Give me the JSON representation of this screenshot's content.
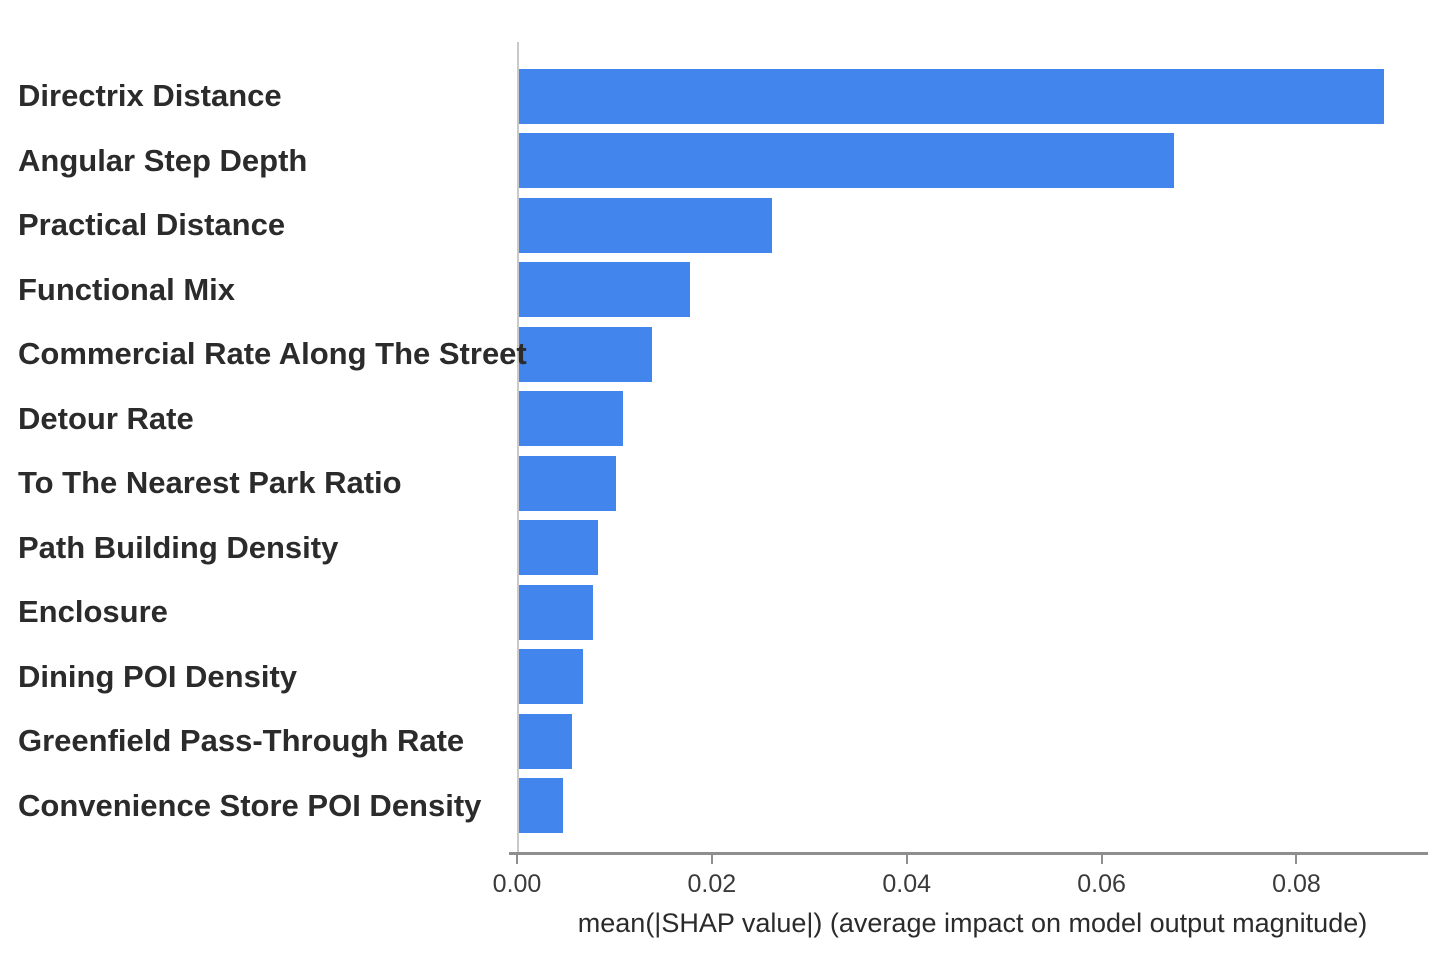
{
  "chart_data": {
    "type": "bar",
    "orientation": "horizontal",
    "title": "",
    "xlabel": "mean(|SHAP value|) (average impact on model output magnitude)",
    "ylabel": "",
    "categories": [
      "Directrix Distance",
      "Angular Step Depth",
      "Practical Distance",
      "Functional Mix",
      "Commercial Rate Along The Street",
      "Detour Rate",
      "To The Nearest Park Ratio",
      "Path Building Density",
      "Enclosure",
      "Dining POI Density",
      "Greenfield Pass-Through Rate",
      "Convenience Store POI Density"
    ],
    "values": [
      0.0888,
      0.0672,
      0.026,
      0.0175,
      0.0137,
      0.0107,
      0.01,
      0.0081,
      0.0076,
      0.0066,
      0.0054,
      0.0045
    ],
    "xtick_values": [
      0.0,
      0.02,
      0.04,
      0.06,
      0.08
    ],
    "xtick_labels": [
      "0.00",
      "0.02",
      "0.04",
      "0.06",
      "0.08"
    ],
    "xlim": [
      0,
      0.0935
    ],
    "grid": false,
    "legend_position": "none",
    "bar_color": "#4285ec",
    "axis_color": "#8e8e8e",
    "spine_color": "#c9c9c9"
  }
}
